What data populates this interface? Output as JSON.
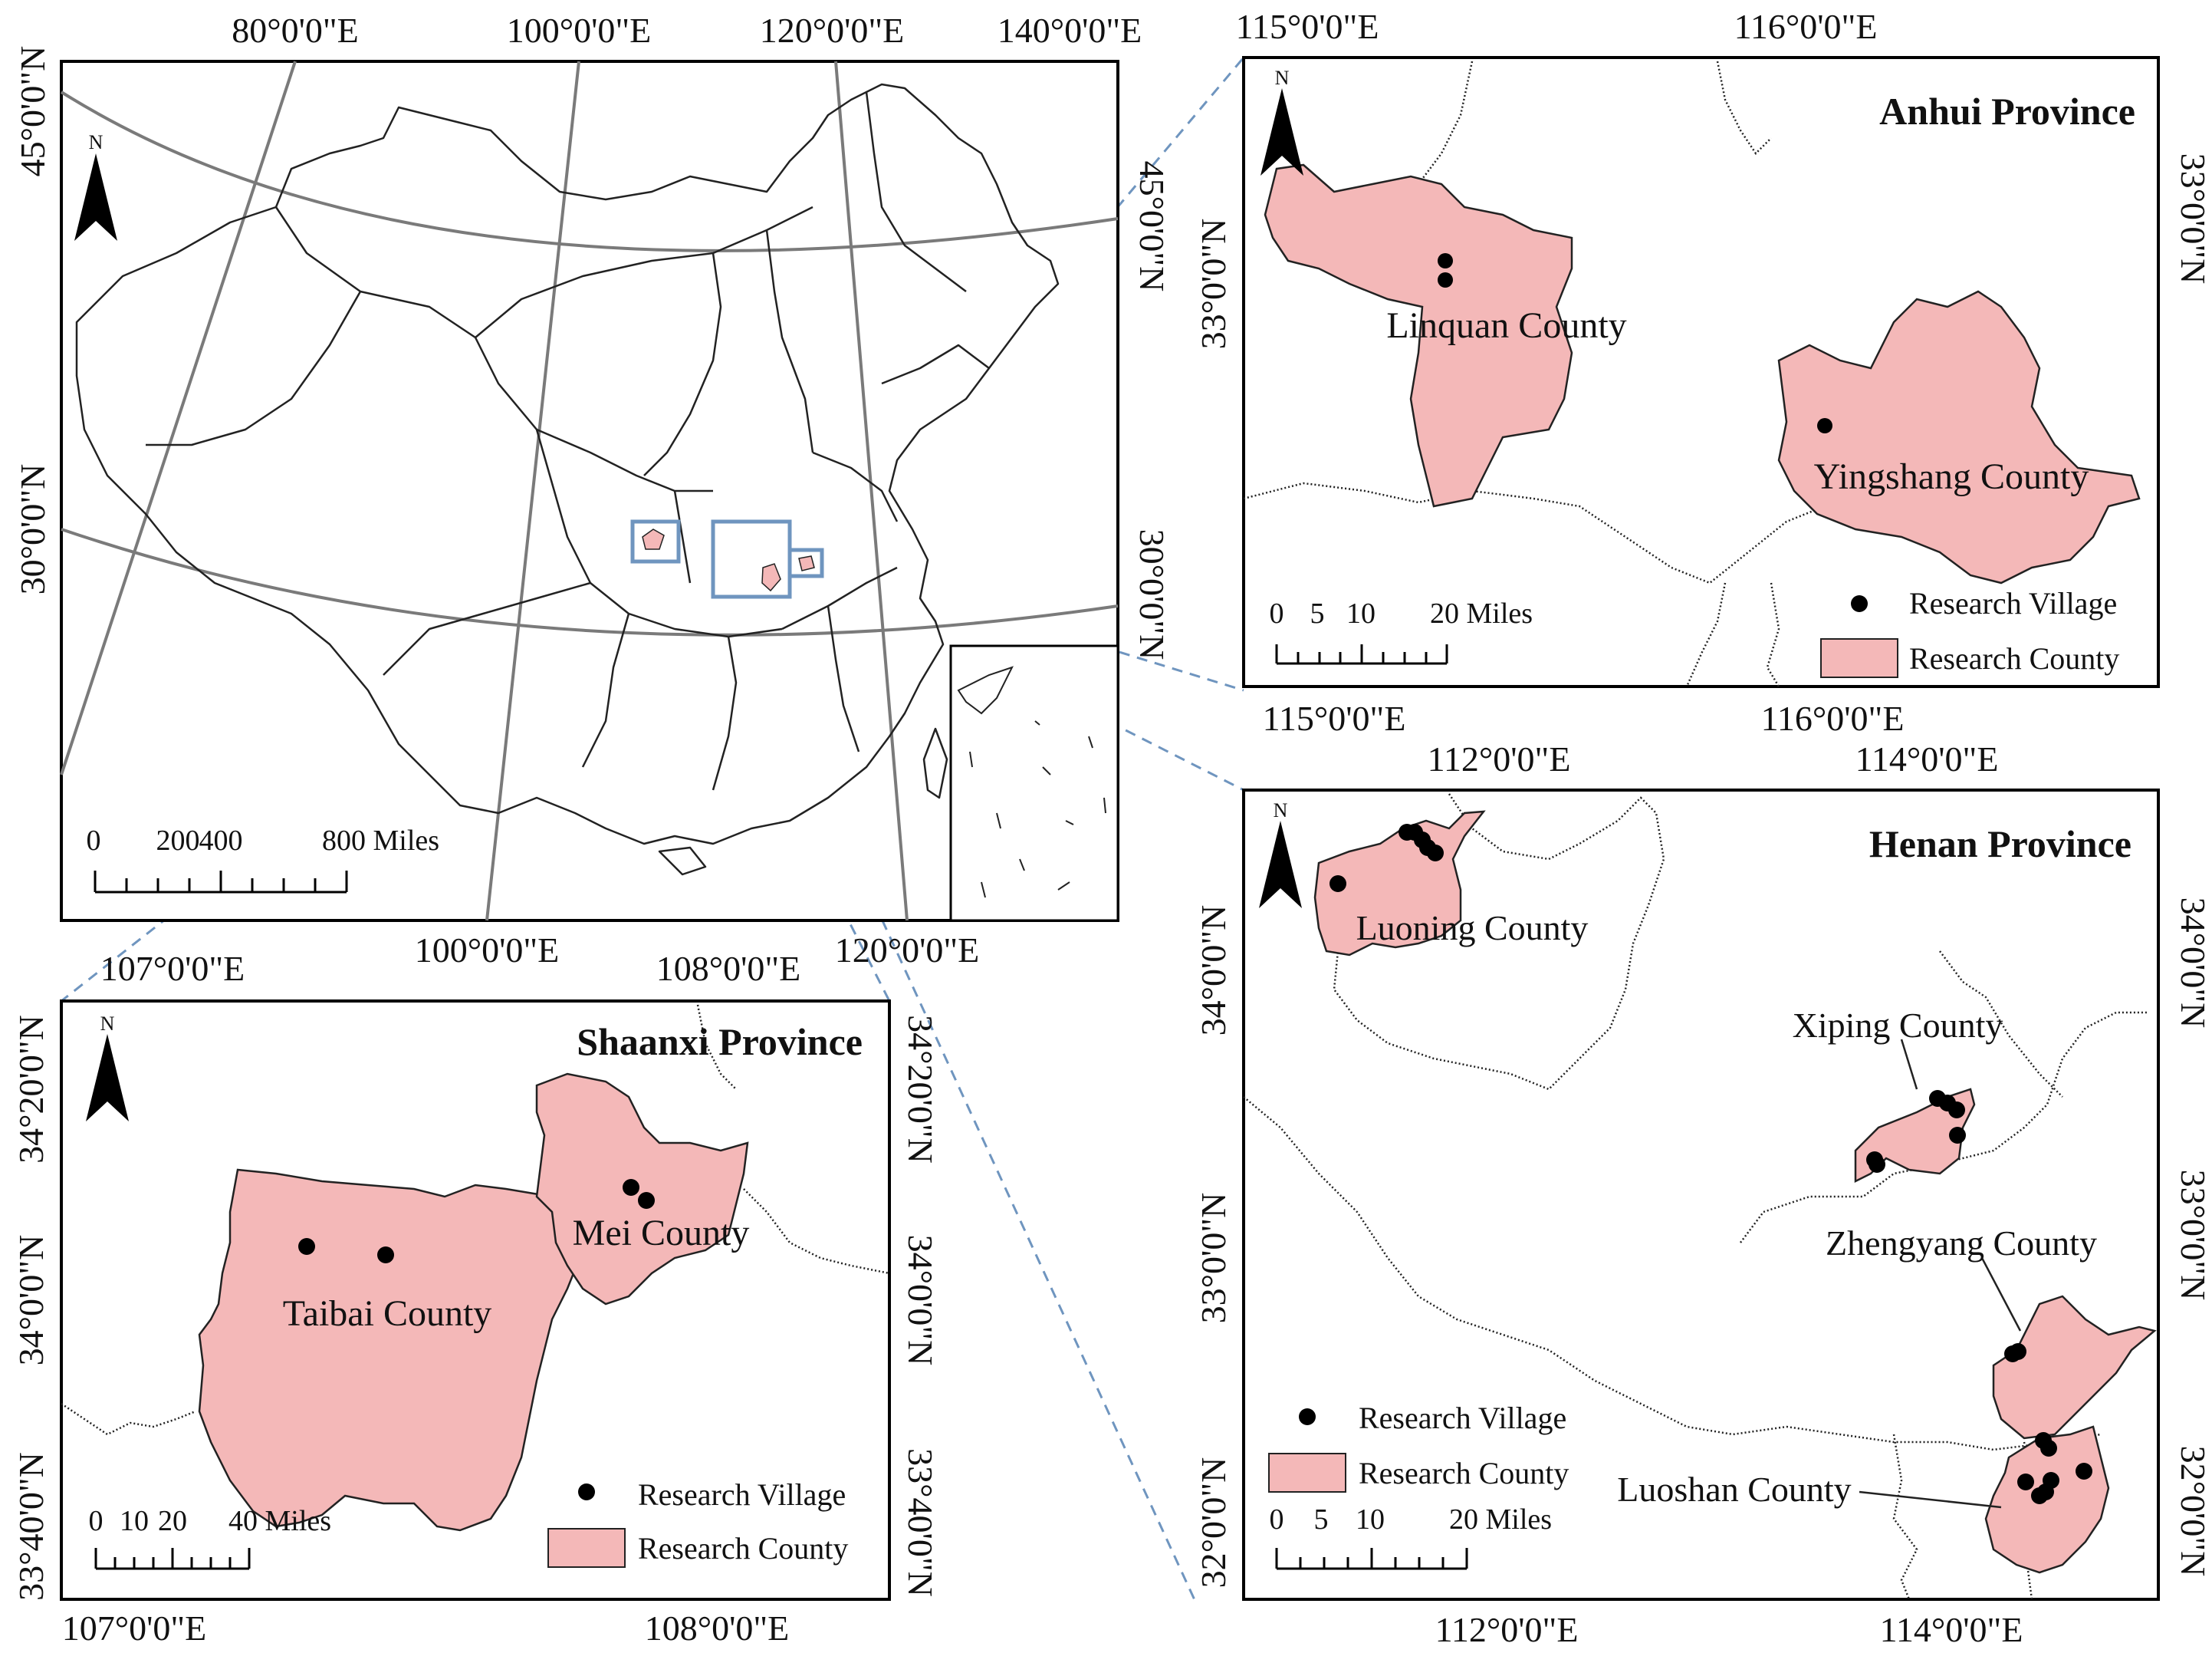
{
  "colors": {
    "county_fill": "#f4b8b8",
    "boundary": "#222222",
    "graticule": "#7a7a7a",
    "connector": "#6f95bf",
    "village": "#000000",
    "frame": "#000000"
  },
  "icons": {
    "north_arrow": "north-arrow-icon",
    "village_marker": "filled-circle",
    "county_marker": "pink-rectangle"
  },
  "main": {
    "top_labels": [
      "80°0'0\"E",
      "100°0'0\"E",
      "120°0'0\"E",
      "140°0'0\"E"
    ],
    "bottom_labels": [
      "100°0'0\"E",
      "120°0'0\"E"
    ],
    "left_labels": [
      "45°0'0\"N",
      "30°0'0\"N"
    ],
    "right_labels": [
      "45°0'0\"N",
      "30°0'0\"N"
    ],
    "north": "N",
    "scale_numbers": [
      "0",
      "200",
      "400",
      "800 Miles"
    ]
  },
  "anhui": {
    "title": "Anhui Province",
    "top_labels": [
      "115°0'0\"E",
      "116°0'0\"E"
    ],
    "bottom_labels": [
      "115°0'0\"E",
      "116°0'0\"E"
    ],
    "left_label": "33°0'0\"N",
    "right_label": "33°0'0\"N",
    "counties": [
      "Linquan County",
      "Yingshang County"
    ],
    "scale_numbers": [
      "0",
      "5",
      "10",
      "20 Miles"
    ],
    "legend": {
      "village": "Research Village",
      "county": "Research County"
    },
    "north": "N"
  },
  "henan": {
    "title": "Henan Province",
    "top_labels": [
      "112°0'0\"E",
      "114°0'0\"E"
    ],
    "bottom_labels": [
      "112°0'0\"E",
      "114°0'0\"E"
    ],
    "left_labels": [
      "34°0'0\"N",
      "33°0'0\"N",
      "32°0'0\"N"
    ],
    "right_labels": [
      "34°0'0\"N",
      "33°0'0\"N",
      "32°0'0\"N"
    ],
    "counties": [
      "Luoning County",
      "Xiping County",
      "Zhengyang County",
      "Luoshan County"
    ],
    "scale_numbers": [
      "0",
      "5",
      "10",
      "20 Miles"
    ],
    "legend": {
      "village": "Research Village",
      "county": "Research County"
    },
    "north": "N"
  },
  "shaanxi": {
    "title": "Shaanxi Province",
    "top_labels": [
      "107°0'0\"E",
      "108°0'0\"E"
    ],
    "bottom_labels": [
      "107°0'0\"E",
      "108°0'0\"E"
    ],
    "left_labels": [
      "34°20'0\"N",
      "34°0'0\"N",
      "33°40'0\"N"
    ],
    "right_labels": [
      "34°20'0\"N",
      "34°0'0\"N",
      "33°40'0\"N"
    ],
    "counties": [
      "Taibai County",
      "Mei County"
    ],
    "scale_numbers": [
      "0",
      "10",
      "20",
      "40 Miles"
    ],
    "legend": {
      "village": "Research Village",
      "county": "Research County"
    },
    "north": "N"
  }
}
